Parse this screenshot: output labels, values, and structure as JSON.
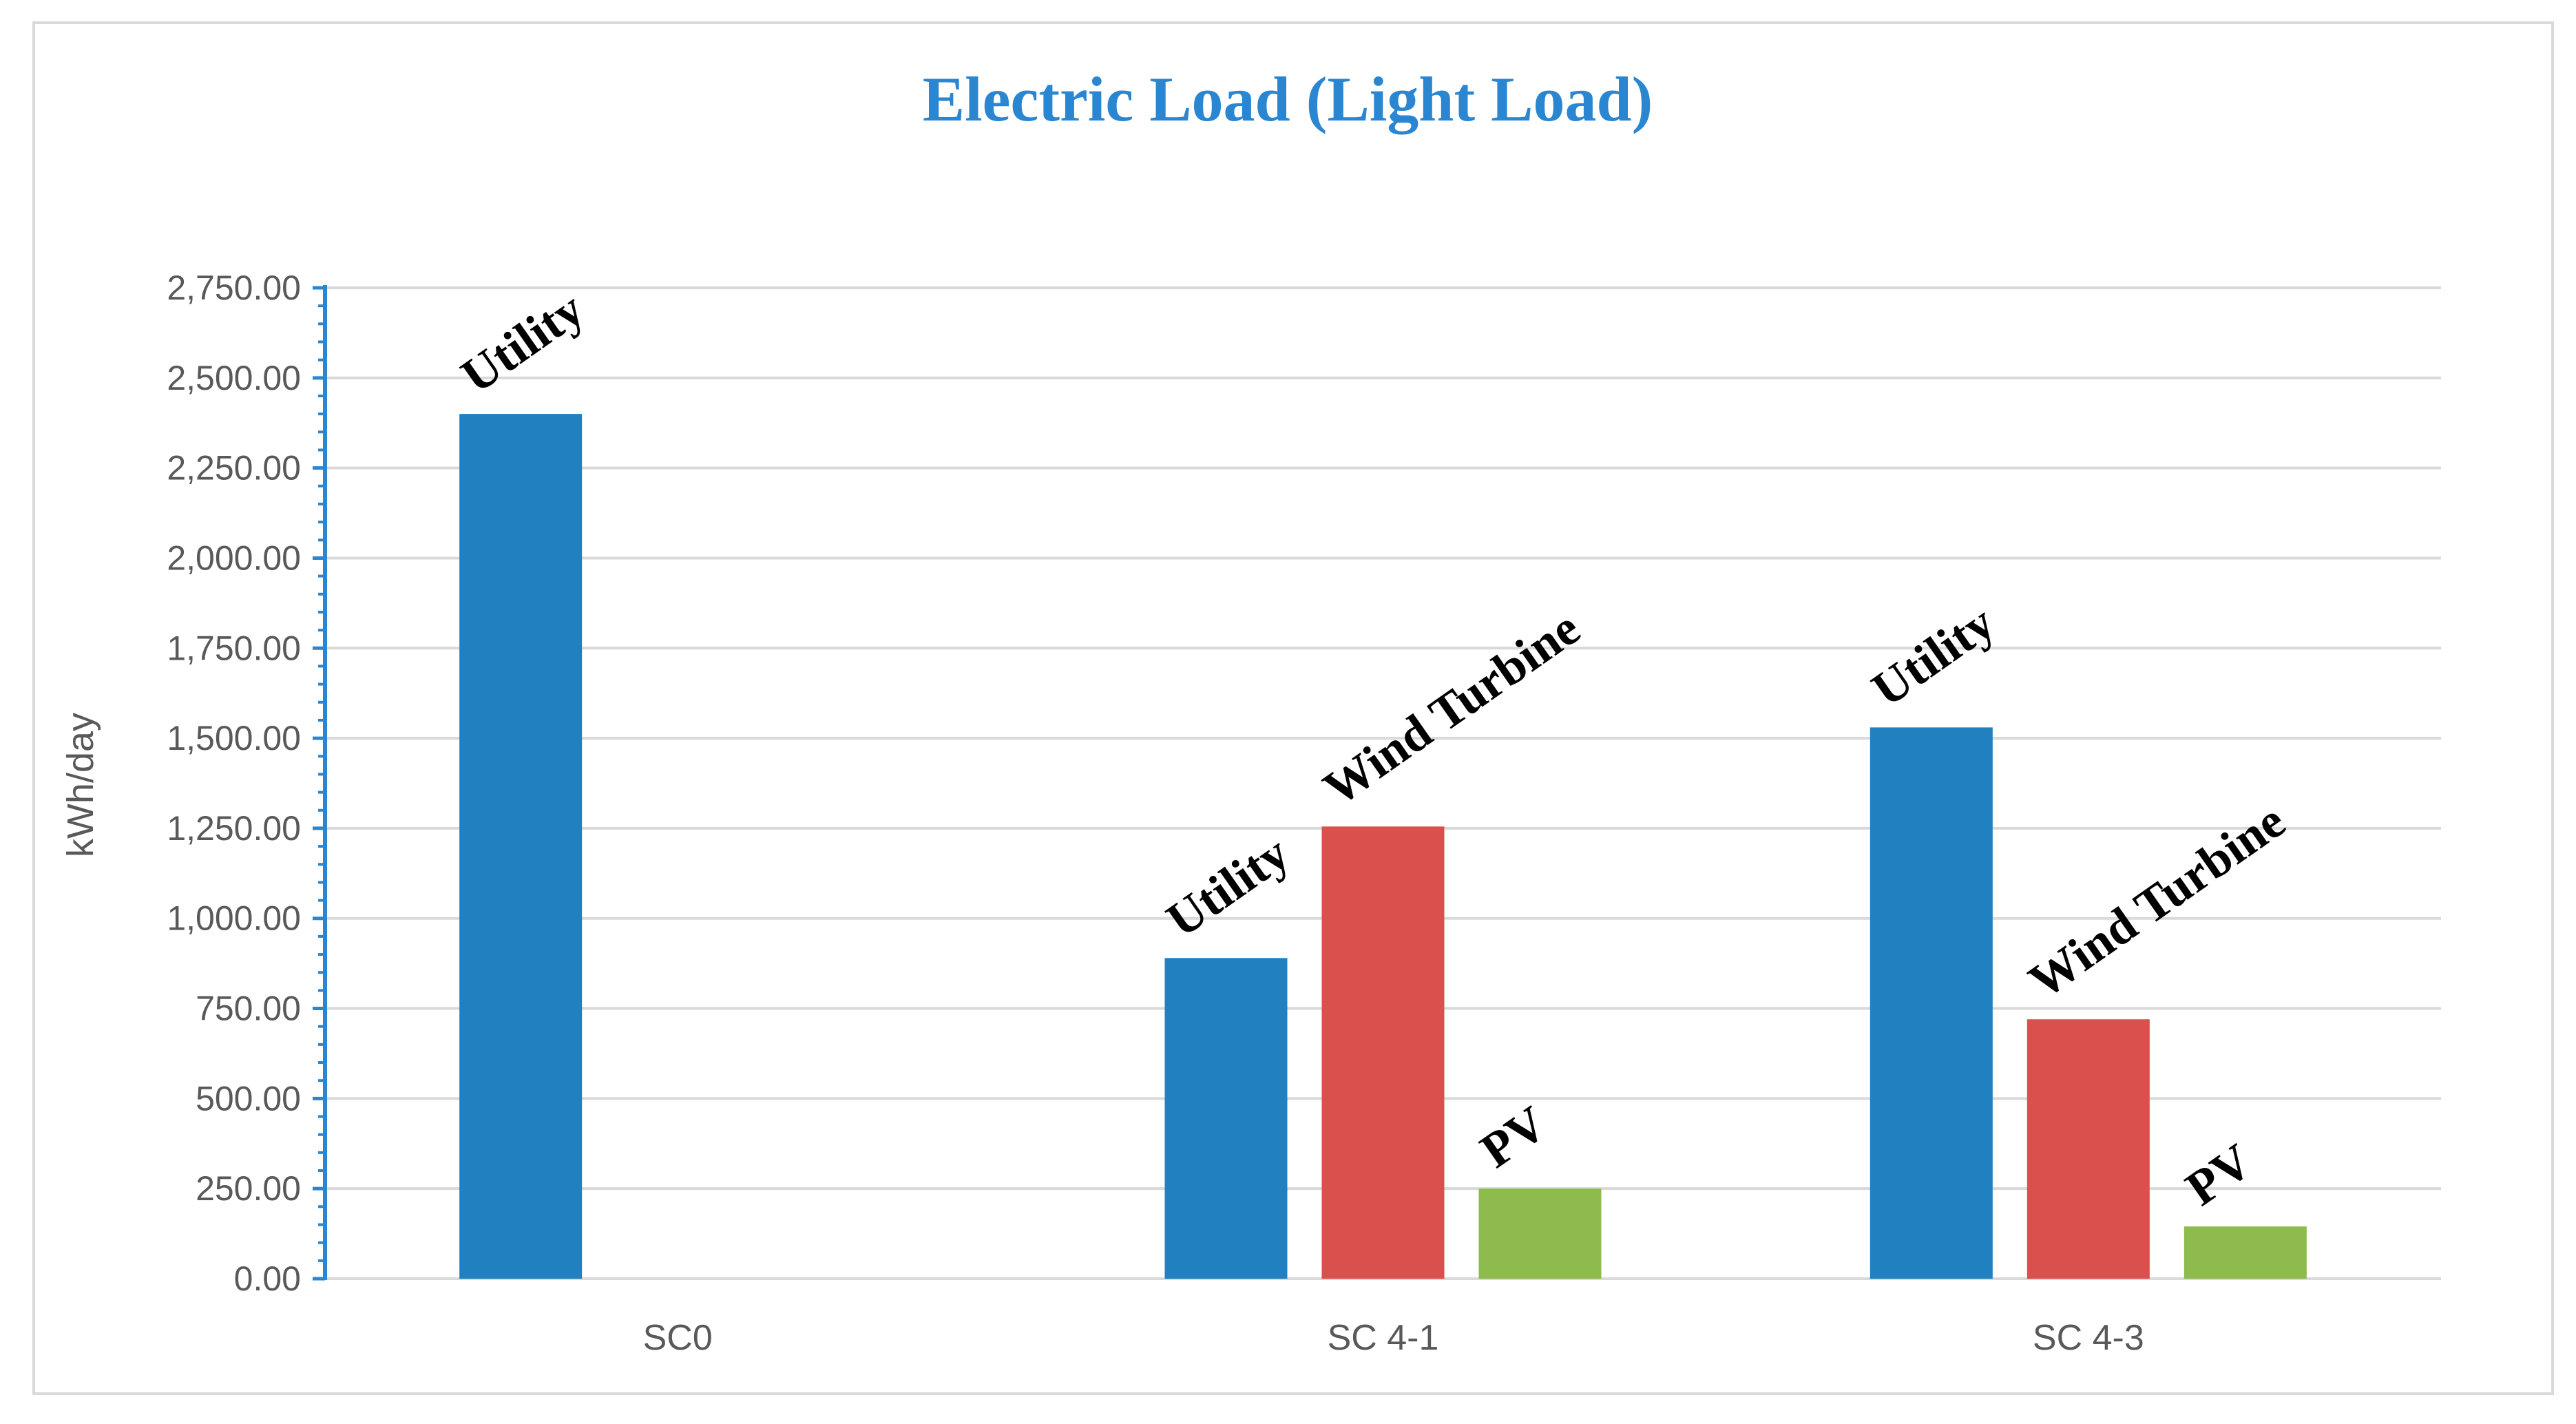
{
  "colors": {
    "title": "#2a86d1",
    "axis": "#2a86d1",
    "grid": "#d9d9d9",
    "frame": "#d9d9d9"
  },
  "chart_data": {
    "type": "bar",
    "title": "Electric Load (Light Load)",
    "xlabel": "",
    "ylabel": "kWh/day",
    "ylim": [
      0,
      2750
    ],
    "ytick_step": 250,
    "ytick_format": "2 decimals with thousands separator",
    "grid": true,
    "legend": "none",
    "categories": [
      "SC0",
      "SC 4-1",
      "SC 4-3"
    ],
    "bars": [
      {
        "category": "SC0",
        "label": "Utility",
        "value": 2400,
        "color": "#2180c0"
      },
      {
        "category": "SC 4-1",
        "label": "Utility",
        "value": 890,
        "color": "#2180c0"
      },
      {
        "category": "SC 4-1",
        "label": "Wind Turbine",
        "value": 1255,
        "color": "#d9504d"
      },
      {
        "category": "SC 4-1",
        "label": "PV",
        "value": 250,
        "color": "#8dbb4e"
      },
      {
        "category": "SC 4-3",
        "label": "Utility",
        "value": 1530,
        "color": "#2180c0"
      },
      {
        "category": "SC 4-3",
        "label": "Wind Turbine",
        "value": 720,
        "color": "#d9504d"
      },
      {
        "category": "SC 4-3",
        "label": "PV",
        "value": 145,
        "color": "#8dbb4e"
      }
    ]
  }
}
